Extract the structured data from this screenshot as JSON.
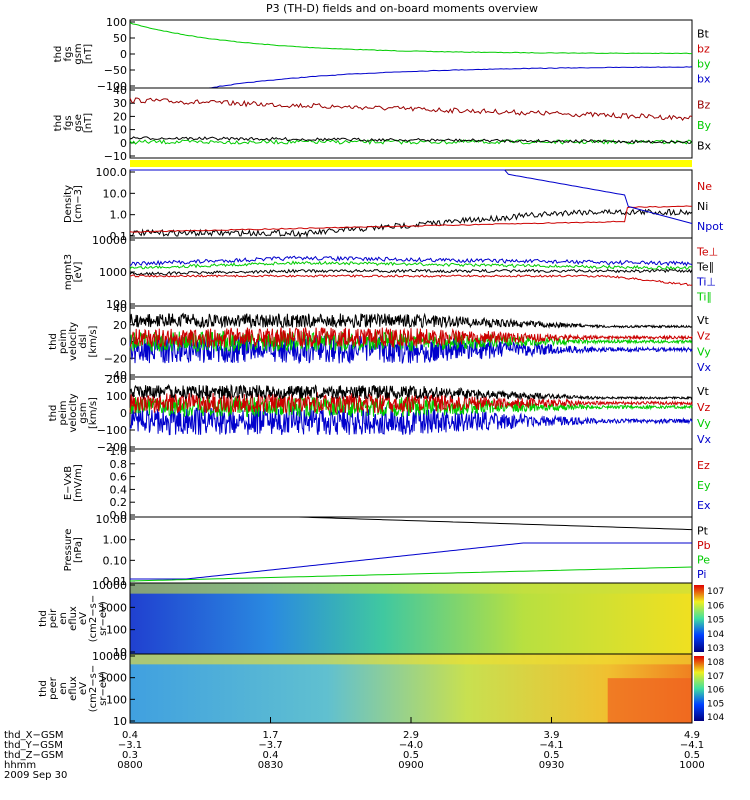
{
  "title": "P3 (TH-D) fields and on-board moments overview",
  "chart_data": [
    {
      "type": "line",
      "ylabel": [
        "thd",
        "fgs",
        "gsm",
        "[nT]"
      ],
      "yticks": [
        "100",
        "50",
        "0",
        "−50",
        "−100"
      ],
      "ylim": [
        -100,
        100
      ],
      "legend": [
        {
          "name": "Bt",
          "color": "#000000"
        },
        {
          "name": "bz",
          "color": "#cc0000"
        },
        {
          "name": "by",
          "color": "#00cc00"
        },
        {
          "name": "bx",
          "color": "#0000cc"
        }
      ]
    },
    {
      "type": "line",
      "ylabel": [
        "thd",
        "fgs",
        "gse",
        "[nT]"
      ],
      "yticks": [
        "40",
        "30",
        "20",
        "10",
        "0",
        "−10"
      ],
      "ylim": [
        -15,
        40
      ],
      "legend": [
        {
          "name": "Bz",
          "color": "#990000"
        },
        {
          "name": "By",
          "color": "#00cc00"
        },
        {
          "name": "Bx",
          "color": "#000000"
        }
      ]
    },
    {
      "type": "line",
      "ylabel": [
        "Density",
        "[cm−3]"
      ],
      "yticks": [
        "100.0",
        "10.0",
        "1.0",
        "0.1"
      ],
      "scale": "log",
      "legend": [
        {
          "name": "Ne",
          "color": "#cc0000"
        },
        {
          "name": "Ni",
          "color": "#000000"
        },
        {
          "name": "Npot",
          "color": "#0000cc"
        }
      ]
    },
    {
      "type": "line",
      "ylabel": [
        "mgmt3",
        "[eV]"
      ],
      "yticks": [
        "10000",
        "1000",
        "100"
      ],
      "scale": "log",
      "legend": [
        {
          "name": "Te⊥",
          "color": "#cc0000"
        },
        {
          "name": "Te∥",
          "color": "#000000"
        },
        {
          "name": "Ti⊥",
          "color": "#0000cc"
        },
        {
          "name": "Ti∥",
          "color": "#00cc00"
        }
      ]
    },
    {
      "type": "line",
      "ylabel": [
        "thd",
        "peim",
        "velocity",
        "dsl",
        "[km/s]"
      ],
      "yticks": [
        "40",
        "20",
        "0",
        "−20",
        "−40"
      ],
      "ylim": [
        -40,
        40
      ],
      "legend": [
        {
          "name": "Vt",
          "color": "#000000"
        },
        {
          "name": "Vz",
          "color": "#cc0000"
        },
        {
          "name": "Vy",
          "color": "#00cc00"
        },
        {
          "name": "Vx",
          "color": "#0000cc"
        }
      ]
    },
    {
      "type": "line",
      "ylabel": [
        "thd",
        "peim",
        "velocity",
        "gsm",
        "[km/s]"
      ],
      "yticks": [
        "200",
        "100",
        "0",
        "−100",
        "−200"
      ],
      "ylim": [
        -200,
        200
      ],
      "legend": [
        {
          "name": "Vt",
          "color": "#000000"
        },
        {
          "name": "Vz",
          "color": "#cc0000"
        },
        {
          "name": "Vy",
          "color": "#00cc00"
        },
        {
          "name": "Vx",
          "color": "#0000cc"
        }
      ]
    },
    {
      "type": "line",
      "ylabel": [
        "E−VxB",
        "[mV/m]"
      ],
      "yticks": [
        "1.0",
        "0.8",
        "0.6",
        "0.4",
        "0.2",
        "0.0"
      ],
      "ylim": [
        0,
        1
      ],
      "legend": [
        {
          "name": "Ez",
          "color": "#cc0000"
        },
        {
          "name": "Ey",
          "color": "#00cc00"
        },
        {
          "name": "Ex",
          "color": "#0000cc"
        }
      ]
    },
    {
      "type": "line",
      "ylabel": [
        "Pressure",
        "[nPa]"
      ],
      "yticks": [
        "10.00",
        "1.00",
        "0.10",
        "0.01"
      ],
      "scale": "log",
      "legend": [
        {
          "name": "Pt",
          "color": "#000000"
        },
        {
          "name": "Pb",
          "color": "#cc0000"
        },
        {
          "name": "Pe",
          "color": "#00cc00"
        },
        {
          "name": "Pi",
          "color": "#0000cc"
        }
      ]
    },
    {
      "type": "heatmap",
      "ylabel": [
        "thd",
        "peir",
        "en",
        "eflux",
        "eV",
        "(cm2−s−",
        "sr−eV)"
      ],
      "yticks": [
        "10000",
        "1000",
        "100",
        "10"
      ],
      "colorbar": [
        "107",
        "106",
        "105",
        "104",
        "103"
      ]
    },
    {
      "type": "heatmap",
      "ylabel": [
        "thd",
        "peer",
        "en",
        "eflux",
        "eV",
        "(cm2−s−",
        "sr−eV)"
      ],
      "yticks": [
        "10000",
        "1000",
        "100",
        "10"
      ],
      "colorbar": [
        "108",
        "107",
        "106",
        "105",
        "104"
      ]
    }
  ],
  "axis": {
    "rows": [
      {
        "label": "thd_X−GSM",
        "values": [
          "0.4",
          "1.7",
          "2.9",
          "3.9",
          "4.9"
        ]
      },
      {
        "label": "thd_Y−GSM",
        "values": [
          "−3.1",
          "−3.7",
          "−4.0",
          "−4.1",
          "−4.1"
        ]
      },
      {
        "label": "thd_Z−GSM",
        "values": [
          "0.3",
          "0.4",
          "0.5",
          "0.5",
          "0.5"
        ]
      },
      {
        "label": "hhmm",
        "values": [
          "0800",
          "0830",
          "0900",
          "0930",
          "1000"
        ]
      }
    ],
    "date": "2009 Sep 30"
  }
}
